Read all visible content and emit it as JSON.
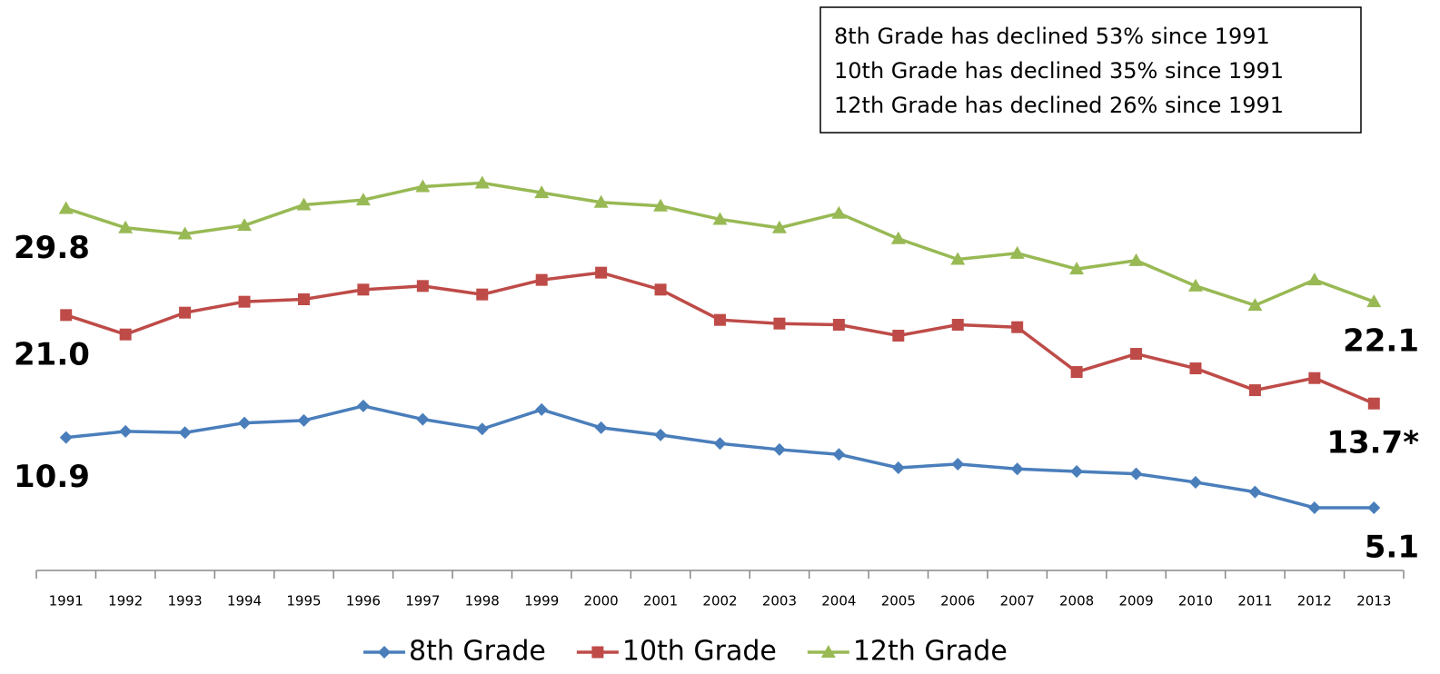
{
  "chart_data": {
    "type": "line",
    "annotations": [
      "8th Grade has declined 53% since 1991",
      "10th Grade has declined 35% since 1991",
      "12th Grade has declined 26% since 1991"
    ],
    "categories": [
      "1991",
      "1992",
      "1993",
      "1994",
      "1995",
      "1996",
      "1997",
      "1998",
      "1999",
      "2000",
      "2001",
      "2002",
      "2003",
      "2004",
      "2005",
      "2006",
      "2007",
      "2008",
      "2009",
      "2010",
      "2011",
      "2012",
      "2013"
    ],
    "ylim": [
      0,
      47
    ],
    "legend": "bottom",
    "series": [
      {
        "name": "8th Grade",
        "color": "#4a7ebb",
        "marker": "diamond",
        "values": [
          10.9,
          11.4,
          11.3,
          12.1,
          12.3,
          13.5,
          12.4,
          11.6,
          13.2,
          11.7,
          11.1,
          10.4,
          9.9,
          9.5,
          8.4,
          8.7,
          8.3,
          8.1,
          7.9,
          7.2,
          6.4,
          5.1,
          5.1
        ],
        "value_labels": [
          "10.9",
          null,
          null,
          null,
          null,
          null,
          null,
          null,
          null,
          null,
          null,
          null,
          null,
          null,
          null,
          null,
          null,
          null,
          null,
          null,
          null,
          null,
          "5.1"
        ]
      },
      {
        "name": "10th Grade",
        "color": "#be4b48",
        "marker": "square",
        "values": [
          21.0,
          19.4,
          21.2,
          22.1,
          22.3,
          23.1,
          23.4,
          22.7,
          23.9,
          24.5,
          23.1,
          20.6,
          20.3,
          20.2,
          19.3,
          20.2,
          20.0,
          16.3,
          17.8,
          16.6,
          14.8,
          15.8,
          13.7
        ],
        "value_labels": [
          "21.0",
          null,
          null,
          null,
          null,
          null,
          null,
          null,
          null,
          null,
          null,
          null,
          null,
          null,
          null,
          null,
          null,
          null,
          null,
          null,
          null,
          null,
          "13.7*"
        ]
      },
      {
        "name": "12th Grade",
        "color": "#98b954",
        "marker": "triangle",
        "values": [
          29.8,
          28.2,
          27.7,
          28.4,
          30.1,
          30.5,
          31.6,
          31.9,
          31.1,
          30.3,
          30.0,
          28.9,
          28.2,
          29.4,
          27.3,
          25.6,
          26.1,
          24.8,
          25.5,
          23.4,
          21.8,
          23.9,
          22.1
        ],
        "value_labels": [
          "29.8",
          null,
          null,
          null,
          null,
          null,
          null,
          null,
          null,
          null,
          null,
          null,
          null,
          null,
          null,
          null,
          null,
          null,
          null,
          null,
          null,
          null,
          "22.1"
        ]
      }
    ]
  }
}
